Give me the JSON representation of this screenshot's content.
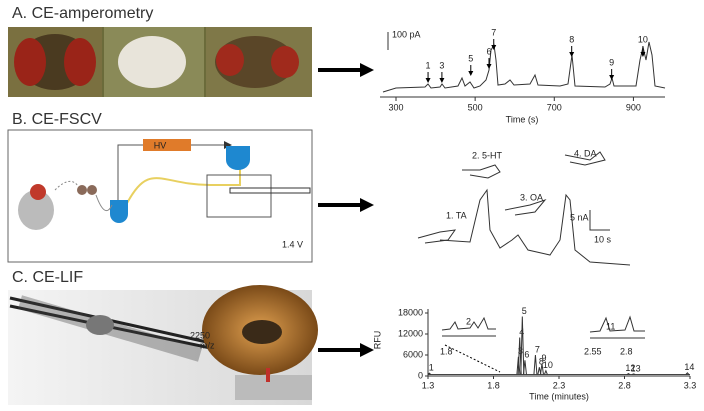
{
  "panel_a": {
    "title": "A. CE-amperometry",
    "scale_bar": "100 pA",
    "x_label": "Time (s)",
    "xlim": [
      300,
      1000
    ],
    "xticks": [
      300,
      500,
      700,
      900
    ],
    "peaks": [
      {
        "label": "1",
        "time": 381
      },
      {
        "label": "3",
        "time": 416
      },
      {
        "label": "5",
        "time": 489
      },
      {
        "label": "6",
        "time": 535
      },
      {
        "label": "7",
        "time": 547
      },
      {
        "label": "8",
        "time": 744
      },
      {
        "label": "9",
        "time": 845
      },
      {
        "label": "10",
        "time": 924
      }
    ]
  },
  "panel_b": {
    "title": "B. CE-FSCV",
    "hv": "HV",
    "voltage": "1.4 V",
    "analytes": [
      "2. 5-HT",
      "4. DA",
      "3. OA",
      "1. TA"
    ],
    "scale_current": "5 nA",
    "scale_time": "10 s"
  },
  "panel_c": {
    "title": "C. CE-LIF",
    "mz_value": "2250",
    "mz_unit": "m/z",
    "y_label": "RFU",
    "x_label": "Time (minutes)",
    "ylim": [
      0,
      18000
    ],
    "yticks": [
      0,
      6000,
      12000,
      18000
    ],
    "xlim": [
      1.3,
      3.3
    ],
    "xticks": [
      1.3,
      1.8,
      2.3,
      2.8,
      3.3
    ],
    "peaks": [
      {
        "label": "1",
        "time": 1.31,
        "height": 800
      },
      {
        "label": "3",
        "time": 1.99,
        "height": 5500
      },
      {
        "label": "4",
        "time": 2.0,
        "height": 11000
      },
      {
        "label": "5",
        "time": 2.02,
        "height": 17000
      },
      {
        "label": "6",
        "time": 2.04,
        "height": 4500
      },
      {
        "label": "7",
        "time": 2.12,
        "height": 6000
      },
      {
        "label": "8",
        "time": 2.15,
        "height": 2500
      },
      {
        "label": "9",
        "time": 2.17,
        "height": 3500
      },
      {
        "label": "10",
        "time": 2.2,
        "height": 1500
      },
      {
        "label": "12",
        "time": 2.83,
        "height": 700
      },
      {
        "label": "13",
        "time": 2.87,
        "height": 600
      },
      {
        "label": "14",
        "time": 3.28,
        "height": 900
      }
    ],
    "inset_left": {
      "peak": "2",
      "tick": 1.8
    },
    "inset_right": {
      "peak": "11",
      "ticks": [
        2.55,
        2.8
      ]
    }
  }
}
